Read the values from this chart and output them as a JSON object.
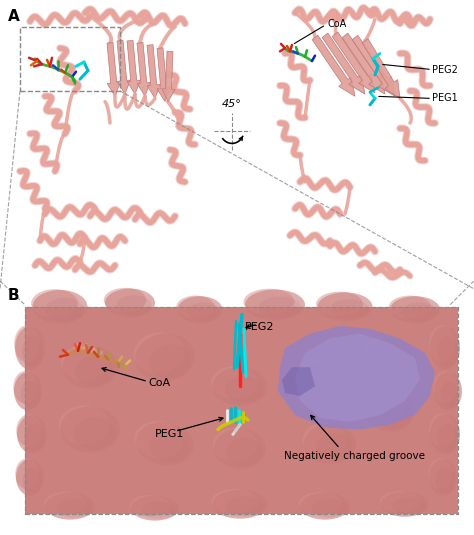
{
  "panel_A_label": "A",
  "panel_B_label": "B",
  "angle_label": "45°",
  "coa_label": "CoA",
  "peg1_label": "PEG1",
  "peg2_label": "PEG2",
  "neg_groove_label": "Negatively charged groove",
  "protein_color": "#e8a49a",
  "protein_color2": "#dfa098",
  "protein_surface_color": "#c97b78",
  "protein_surface_light": "#d4908c",
  "groove_color": "#9080c8",
  "groove_light": "#a898d8",
  "background_color": "#ffffff",
  "dash_color": "#888888",
  "fig_width": 4.74,
  "fig_height": 5.35,
  "dpi": 100,
  "helix_color": "#e8a49a",
  "strand_color": "#e0988e",
  "ligand_green": "#22aa22",
  "ligand_red": "#cc2222",
  "ligand_blue": "#1122cc",
  "ligand_orange": "#cc7700",
  "ligand_cyan": "#00bbcc",
  "ligand_yellow": "#cccc00",
  "ligand_magenta": "#aa22aa",
  "ligand_white": "#eeeeee"
}
